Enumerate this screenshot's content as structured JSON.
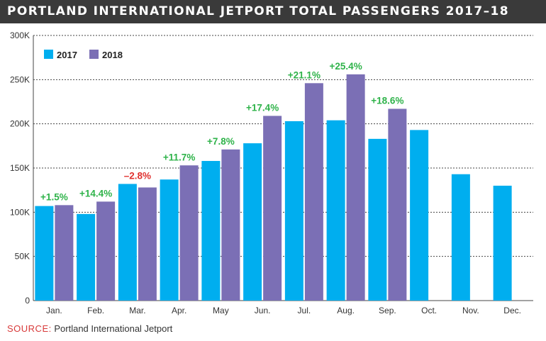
{
  "title": "PORTLAND INTERNATIONAL JETPORT TOTAL PASSENGERS 2017–18",
  "source": {
    "label": "SOURCE:",
    "text": "Portland International Jetport"
  },
  "colors": {
    "2017": "#00aeef",
    "2018": "#7b6fb5",
    "positive": "#2fb34a",
    "negative": "#e0312f",
    "grid": "#444444"
  },
  "chart_data": {
    "type": "bar",
    "title": "PORTLAND INTERNATIONAL JETPORT TOTAL PASSENGERS 2017–18",
    "xlabel": "",
    "ylabel": "",
    "ylim": [
      0,
      300000
    ],
    "yticks": [
      0,
      50000,
      100000,
      150000,
      200000,
      250000,
      300000
    ],
    "ytick_labels": [
      "0",
      "50K",
      "100K",
      "150K",
      "200K",
      "250K",
      "300K"
    ],
    "grid": true,
    "legend_position": "top-left",
    "categories": [
      "Jan.",
      "Feb.",
      "Mar.",
      "Apr.",
      "May",
      "Jun.",
      "Jul.",
      "Aug.",
      "Sep.",
      "Oct.",
      "Nov.",
      "Dec."
    ],
    "series": [
      {
        "name": "2017",
        "values": [
          107000,
          98000,
          132000,
          137000,
          158000,
          178000,
          203000,
          204000,
          183000,
          193000,
          143000,
          130000
        ]
      },
      {
        "name": "2018",
        "values": [
          108000,
          112000,
          128000,
          153000,
          171000,
          209000,
          246000,
          256000,
          217000,
          null,
          null,
          null
        ]
      }
    ],
    "annotations": [
      "+1.5%",
      "+14.4%",
      "–2.8%",
      "+11.7%",
      "+7.8%",
      "+17.4%",
      "+21.1%",
      "+25.4%",
      "+18.6%",
      null,
      null,
      null
    ]
  }
}
